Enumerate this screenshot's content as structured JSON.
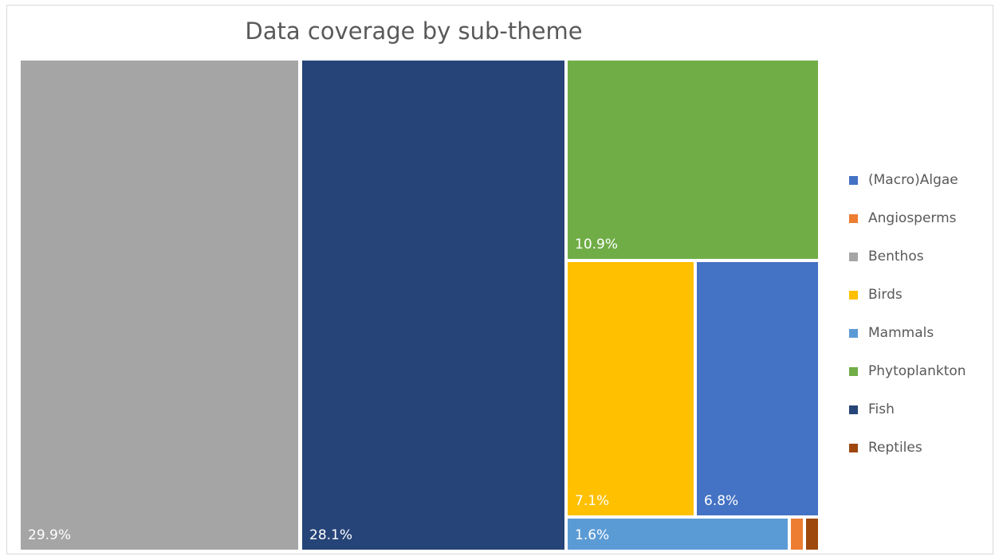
{
  "chart_data": {
    "type": "treemap",
    "title": "Data coverage by sub-theme",
    "legend_position": "right",
    "legend": [
      {
        "name": "(Macro)Algae",
        "color": "#4472c4"
      },
      {
        "name": "Angiosperms",
        "color": "#ed7d31"
      },
      {
        "name": "Benthos",
        "color": "#a5a5a5"
      },
      {
        "name": "Birds",
        "color": "#ffc000"
      },
      {
        "name": "Mammals",
        "color": "#5b9bd5"
      },
      {
        "name": "Phytoplankton",
        "color": "#70ad47"
      },
      {
        "name": "Fish",
        "color": "#264478"
      },
      {
        "name": "Reptiles",
        "color": "#9e480e"
      }
    ],
    "tiles": [
      {
        "name": "Benthos",
        "value": 29.9,
        "label": "29.9%",
        "color": "#a5a5a5"
      },
      {
        "name": "Fish",
        "value": 28.1,
        "label": "28.1%",
        "color": "#264478"
      },
      {
        "name": "Phytoplankton",
        "value": 10.9,
        "label": "10.9%",
        "color": "#70ad47"
      },
      {
        "name": "Birds",
        "value": 7.1,
        "label": "7.1%",
        "color": "#ffc000"
      },
      {
        "name": "(Macro)Algae",
        "value": 6.8,
        "label": "6.8%",
        "color": "#4472c4"
      },
      {
        "name": "Mammals",
        "value": 1.6,
        "label": "1.6%",
        "color": "#5b9bd5"
      },
      {
        "name": "Angiosperms",
        "value": 0.2,
        "label": "",
        "color": "#ed7d31"
      },
      {
        "name": "Reptiles",
        "value": 0.2,
        "label": "",
        "color": "#9e480e"
      }
    ]
  }
}
